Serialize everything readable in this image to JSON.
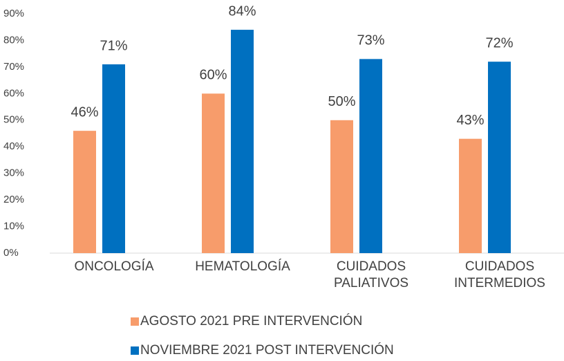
{
  "chart_data": {
    "type": "bar",
    "categories": [
      "ONCOLOGÍA",
      "HEMATOLOGÍA",
      "CUIDADOS PALIATIVOS",
      "CUIDADOS INTERMEDIOS"
    ],
    "series": [
      {
        "name": "AGOSTO 2021 PRE INTERVENCIÓN",
        "color": "#F79C6B",
        "values": [
          46,
          60,
          50,
          43
        ],
        "value_labels": [
          "46%",
          "60%",
          "50%",
          "43%"
        ]
      },
      {
        "name": "NOVIEMBRE 2021 POST INTERVENCIÓN",
        "color": "#0070C0",
        "values": [
          71,
          84,
          73,
          72
        ],
        "value_labels": [
          "71%",
          "84%",
          "73%",
          "72%"
        ]
      }
    ],
    "ylim": [
      0,
      90
    ],
    "yticks": [
      {
        "value": 0,
        "label": "0%"
      },
      {
        "value": 10,
        "label": "10%"
      },
      {
        "value": 20,
        "label": "20%"
      },
      {
        "value": 30,
        "label": "30%"
      },
      {
        "value": 40,
        "label": "40%"
      },
      {
        "value": 50,
        "label": "50%"
      },
      {
        "value": 60,
        "label": "60%"
      },
      {
        "value": 70,
        "label": "70%"
      },
      {
        "value": 80,
        "label": "80%"
      },
      {
        "value": 90,
        "label": "90%"
      }
    ],
    "legend": "bottom",
    "grid": false
  }
}
